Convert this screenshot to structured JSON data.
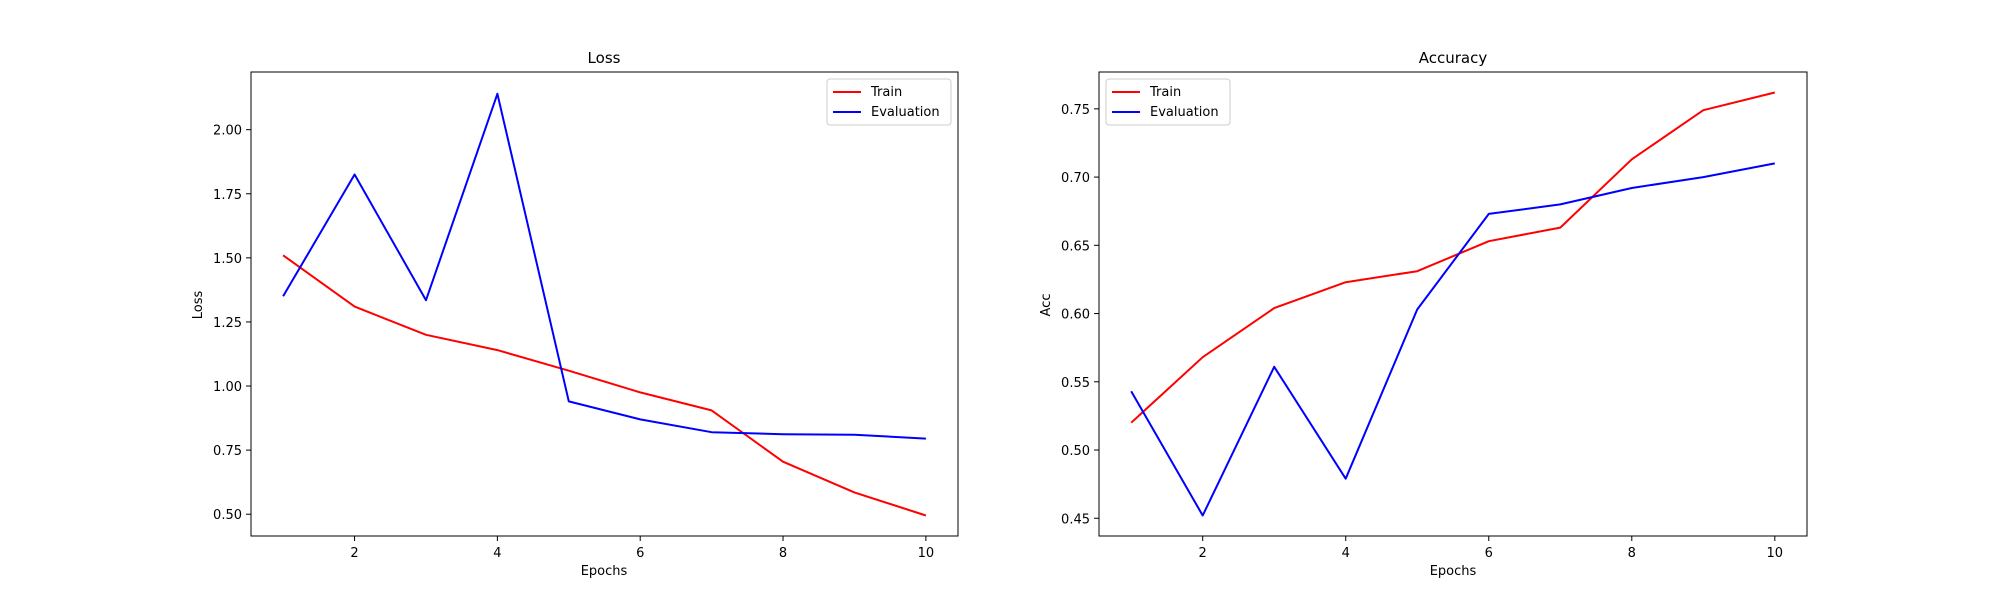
{
  "chart_data": [
    {
      "type": "line",
      "title": "Loss",
      "xlabel": "Epochs",
      "ylabel": "Loss",
      "x": [
        1,
        2,
        3,
        4,
        5,
        6,
        7,
        8,
        9,
        10
      ],
      "xlim": [
        0.55,
        10.45
      ],
      "ylim": [
        0.415,
        2.225
      ],
      "xticks": [
        2,
        4,
        6,
        8,
        10
      ],
      "yticks": [
        0.5,
        0.75,
        1.0,
        1.25,
        1.5,
        1.75,
        2.0
      ],
      "ytick_labels": [
        "0.50",
        "0.75",
        "1.00",
        "1.25",
        "1.50",
        "1.75",
        "2.00"
      ],
      "grid": false,
      "legend_position": "top-right",
      "series": [
        {
          "name": "Train",
          "color": "#ff0000",
          "values": [
            1.51,
            1.31,
            1.2,
            1.14,
            1.06,
            0.975,
            0.905,
            0.705,
            0.585,
            0.495
          ]
        },
        {
          "name": "Evaluation",
          "color": "#0000ff",
          "values": [
            1.35,
            1.825,
            1.335,
            2.14,
            0.94,
            0.87,
            0.82,
            0.812,
            0.81,
            0.795
          ]
        }
      ]
    },
    {
      "type": "line",
      "title": "Accuracy",
      "xlabel": "Epochs",
      "ylabel": "Acc",
      "x": [
        1,
        2,
        3,
        4,
        5,
        6,
        7,
        8,
        9,
        10
      ],
      "xlim": [
        0.55,
        10.45
      ],
      "ylim": [
        0.437,
        0.777
      ],
      "xticks": [
        2,
        4,
        6,
        8,
        10
      ],
      "yticks": [
        0.45,
        0.5,
        0.55,
        0.6,
        0.65,
        0.7,
        0.75
      ],
      "ytick_labels": [
        "0.45",
        "0.50",
        "0.55",
        "0.60",
        "0.65",
        "0.70",
        "0.75"
      ],
      "grid": false,
      "legend_position": "top-left",
      "series": [
        {
          "name": "Train",
          "color": "#ff0000",
          "values": [
            0.52,
            0.568,
            0.604,
            0.623,
            0.631,
            0.653,
            0.663,
            0.713,
            0.749,
            0.762
          ]
        },
        {
          "name": "Evaluation",
          "color": "#0000ff",
          "values": [
            0.543,
            0.452,
            0.561,
            0.479,
            0.603,
            0.673,
            0.68,
            0.692,
            0.7,
            0.71
          ]
        }
      ]
    }
  ]
}
